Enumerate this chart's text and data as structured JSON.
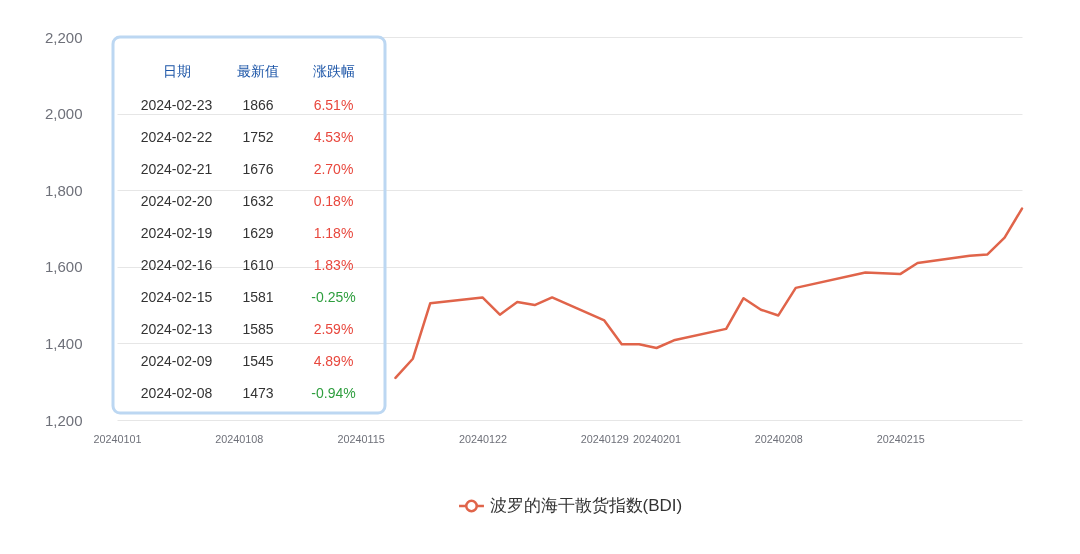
{
  "chart_data": [
    {
      "type": "line",
      "x": [
        "2024-01-17",
        "2024-01-18",
        "2024-01-19",
        "2024-01-22",
        "2024-01-23",
        "2024-01-24",
        "2024-01-25",
        "2024-01-26",
        "2024-01-29",
        "2024-01-30",
        "2024-01-31",
        "2024-02-01",
        "2024-02-02",
        "2024-02-05",
        "2024-02-06",
        "2024-02-07",
        "2024-02-08",
        "2024-02-09",
        "2024-02-13",
        "2024-02-15",
        "2024-02-16",
        "2024-02-19",
        "2024-02-20",
        "2024-02-21",
        "2024-02-22"
      ],
      "series": [
        {
          "name": "波罗的海干散货指数(BDI)",
          "color": "#e0644a",
          "values": [
            1310,
            1360,
            1505,
            1520,
            1475,
            1508,
            1500,
            1520,
            1460,
            1398,
            1398,
            1388,
            1408,
            1438,
            1518,
            1488,
            1473,
            1545,
            1585,
            1581,
            1610,
            1629,
            1632,
            1676,
            1752
          ]
        }
      ],
      "xlim": [
        "2024-01-01",
        "2024-02-22"
      ],
      "xticks": [
        {
          "value": "2024-01-01",
          "label": "20240101"
        },
        {
          "value": "2024-01-08",
          "label": "20240108"
        },
        {
          "value": "2024-01-15",
          "label": "20240115"
        },
        {
          "value": "2024-01-22",
          "label": "20240122"
        },
        {
          "value": "2024-01-29",
          "label": "20240129"
        },
        {
          "value": "2024-02-01",
          "label": "20240201"
        },
        {
          "value": "2024-02-08",
          "label": "20240208"
        },
        {
          "value": "2024-02-15",
          "label": "20240215"
        }
      ],
      "ylim": [
        1200,
        2200
      ],
      "yticks": [
        {
          "value": 1200,
          "label": "1,200"
        },
        {
          "value": 1400,
          "label": "1,400"
        },
        {
          "value": 1600,
          "label": "1,600"
        },
        {
          "value": 1800,
          "label": "1,800"
        },
        {
          "value": 2000,
          "label": "2,000"
        },
        {
          "value": 2200,
          "label": "2,200"
        }
      ],
      "grid": "y",
      "legend": "bottom"
    },
    {
      "type": "other",
      "ylabel": "日期",
      "categories": [
        "2024-02-23",
        "2024-02-22",
        "2024-02-21",
        "2024-02-20",
        "2024-02-19",
        "2024-02-16",
        "2024-02-15",
        "2024-02-13",
        "2024-02-09",
        "2024-02-08"
      ],
      "series": [
        {
          "name": "最新值",
          "values": [
            1866,
            1752,
            1676,
            1632,
            1629,
            1610,
            1581,
            1585,
            1545,
            1473
          ]
        },
        {
          "name": "涨跌幅",
          "colors": [
            "#e8473d",
            "#e8473d",
            "#e8473d",
            "#e8473d",
            "#e8473d",
            "#e8473d",
            "#2e9e3e",
            "#e8473d",
            "#e8473d",
            "#2e9e3e"
          ],
          "values": [
            6.51,
            4.53,
            2.7,
            0.18,
            1.18,
            1.83,
            -0.25,
            2.59,
            4.89,
            -0.94
          ],
          "value_labels": [
            "6.51%",
            "4.53%",
            "2.70%",
            "0.18%",
            "1.18%",
            "1.83%",
            "-0.25%",
            "2.59%",
            "4.89%",
            "-0.94%"
          ]
        }
      ],
      "data_labels": true
    }
  ]
}
